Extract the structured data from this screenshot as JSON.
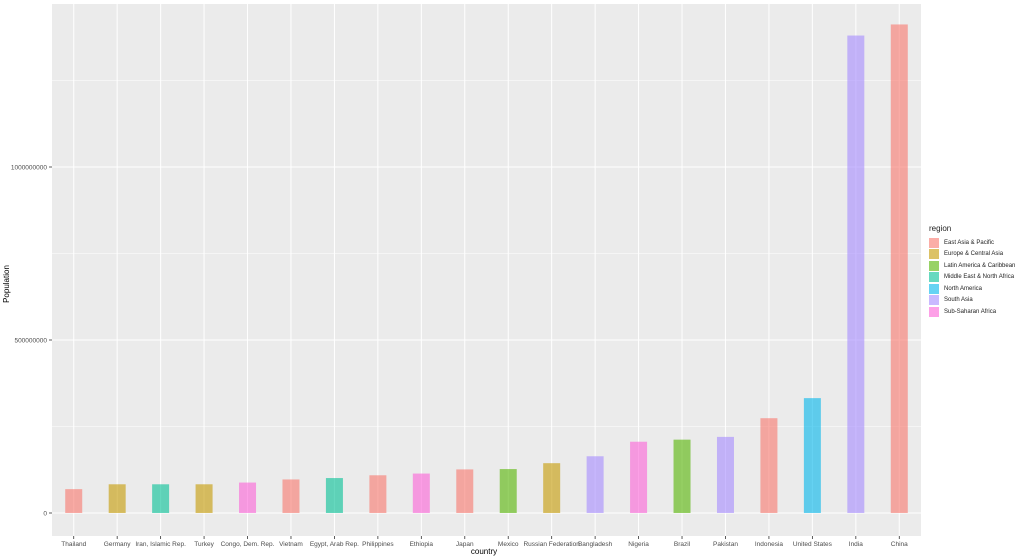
{
  "chart_data": {
    "type": "bar",
    "xlabel": "country",
    "ylabel": "Population",
    "ylim": [
      0,
      1420000000
    ],
    "yticks": [
      0,
      500000000,
      1000000000
    ],
    "ytick_labels": [
      "0",
      "500000000",
      "1000000000"
    ],
    "grid": true,
    "legend_placement": "right",
    "legend_title": "region",
    "categories": [
      "Thailand",
      "Germany",
      "Iran, Islamic Rep.",
      "Turkey",
      "Congo, Dem. Rep.",
      "Vietnam",
      "Egypt, Arab Rep.",
      "Philippines",
      "Ethiopia",
      "Japan",
      "Mexico",
      "Russian Federation",
      "Bangladesh",
      "Nigeria",
      "Brazil",
      "Pakistan",
      "Indonesia",
      "United States",
      "India",
      "China"
    ],
    "values": [
      69000000,
      83000000,
      83000000,
      83000000,
      88000000,
      97000000,
      101000000,
      109000000,
      114000000,
      126000000,
      127000000,
      144000000,
      164000000,
      206000000,
      212000000,
      220000000,
      274000000,
      332000000,
      1380000000,
      1412000000
    ],
    "regions": [
      "East Asia & Pacific",
      "Europe & Central Asia",
      "Middle East & North Africa",
      "Europe & Central Asia",
      "Sub-Saharan Africa",
      "East Asia & Pacific",
      "Middle East & North Africa",
      "East Asia & Pacific",
      "Sub-Saharan Africa",
      "East Asia & Pacific",
      "Latin America & Caribbean",
      "Europe & Central Asia",
      "South Asia",
      "Sub-Saharan Africa",
      "Latin America & Caribbean",
      "South Asia",
      "East Asia & Pacific",
      "North America",
      "South Asia",
      "East Asia & Pacific"
    ],
    "legend": [
      {
        "name": "East Asia & Pacific",
        "color": "#F8766D"
      },
      {
        "name": "Europe & Central Asia",
        "color": "#C49A00"
      },
      {
        "name": "Latin America & Caribbean",
        "color": "#53B400"
      },
      {
        "name": "Middle East & North Africa",
        "color": "#00C094"
      },
      {
        "name": "North America",
        "color": "#00B6EB"
      },
      {
        "name": "South Asia",
        "color": "#A58AFF"
      },
      {
        "name": "Sub-Saharan Africa",
        "color": "#FB61D7"
      }
    ],
    "bar_opacity": 0.6,
    "panel_color": "#EBEBEB",
    "grid_color": "#FFFFFF"
  }
}
